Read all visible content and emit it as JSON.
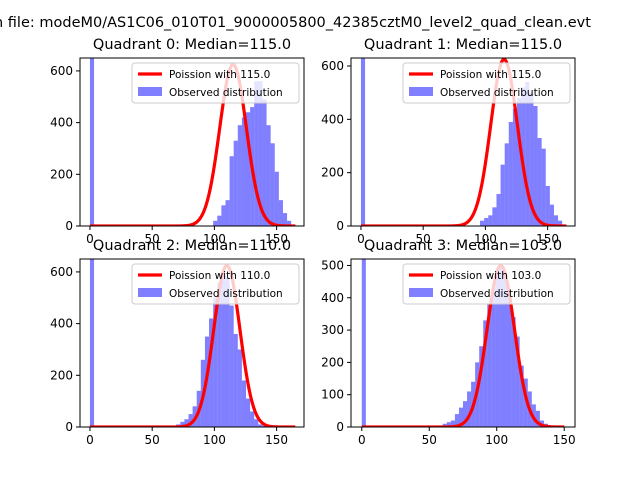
{
  "figure_title": "n file: modeM0/AS1C06_010T01_9000005800_42385cztM0_level2_quad_clean.evt",
  "colors": {
    "histogram": "#0000ff",
    "histogram_alpha": 0.5,
    "poisson_line": "#ff0000"
  },
  "chart_data": [
    {
      "type": "bar",
      "title": "Quadrant 0: Median=115.0",
      "xlim": [
        -8,
        172
      ],
      "ylim": [
        0,
        650
      ],
      "xticks": [
        0,
        50,
        100,
        150
      ],
      "yticks": [
        0,
        200,
        400,
        600
      ],
      "legend": {
        "placement": "upper right",
        "entries": [
          "Poission with 115.0",
          "Observed distribution"
        ]
      },
      "median": 115.0,
      "poisson_mean": 115.0,
      "poisson_peak": 625,
      "poisson_xrange": [
        0,
        165
      ],
      "histogram": {
        "bin_width": 3.3,
        "x_start": 0,
        "values": [
          650,
          0,
          0,
          0,
          0,
          0,
          0,
          0,
          0,
          0,
          0,
          0,
          0,
          0,
          0,
          0,
          0,
          0,
          0,
          0,
          0,
          0,
          0,
          0,
          0,
          0,
          0,
          0,
          0,
          0,
          20,
          40,
          80,
          100,
          270,
          330,
          390,
          420,
          440,
          460,
          560,
          560,
          490,
          390,
          320,
          210,
          100,
          50,
          20,
          5
        ]
      }
    },
    {
      "type": "bar",
      "title": "Quadrant 1: Median=115.0",
      "xlim": [
        -8,
        172
      ],
      "ylim": [
        0,
        630
      ],
      "xticks": [
        0,
        50,
        100,
        150
      ],
      "yticks": [
        0,
        200,
        400,
        600
      ],
      "legend": {
        "placement": "upper right",
        "entries": [
          "Poission with 115.0",
          "Observed distribution"
        ]
      },
      "median": 115.0,
      "poisson_mean": 115.0,
      "poisson_peak": 625,
      "poisson_xrange": [
        0,
        165
      ],
      "histogram": {
        "bin_width": 3.3,
        "x_start": 0,
        "values": [
          630,
          0,
          0,
          0,
          0,
          0,
          0,
          0,
          0,
          0,
          0,
          0,
          0,
          0,
          0,
          0,
          0,
          0,
          0,
          0,
          0,
          0,
          0,
          0,
          0,
          0,
          0,
          0,
          0,
          20,
          30,
          40,
          70,
          120,
          230,
          310,
          390,
          440,
          480,
          520,
          540,
          500,
          450,
          330,
          290,
          150,
          80,
          40,
          20,
          5
        ]
      }
    },
    {
      "type": "bar",
      "title": "Quadrant 2: Median=110.0",
      "xlim": [
        -8,
        172
      ],
      "ylim": [
        0,
        650
      ],
      "xticks": [
        0,
        50,
        100,
        150
      ],
      "yticks": [
        0,
        200,
        400,
        600
      ],
      "legend": {
        "placement": "upper right",
        "entries": [
          "Poission with 110.0",
          "Observed distribution"
        ]
      },
      "median": 110.0,
      "poisson_mean": 110.0,
      "poisson_peak": 625,
      "poisson_xrange": [
        0,
        165
      ],
      "histogram": {
        "bin_width": 3.3,
        "x_start": 0,
        "values": [
          650,
          0,
          0,
          0,
          0,
          0,
          0,
          0,
          0,
          0,
          0,
          0,
          0,
          0,
          0,
          0,
          0,
          0,
          0,
          0,
          0,
          10,
          20,
          30,
          50,
          80,
          140,
          260,
          350,
          420,
          500,
          560,
          590,
          580,
          470,
          360,
          300,
          180,
          110,
          60,
          30,
          10,
          5,
          2,
          0,
          0,
          0,
          0,
          0,
          0
        ]
      }
    },
    {
      "type": "bar",
      "title": "Quadrant 3: Median=103.0",
      "xlim": [
        -8,
        158
      ],
      "ylim": [
        0,
        520
      ],
      "xticks": [
        0,
        50,
        100,
        150
      ],
      "yticks": [
        0,
        100,
        200,
        300,
        400,
        500
      ],
      "legend": {
        "placement": "upper right",
        "entries": [
          "Poission with 103.0",
          "Observed distribution"
        ]
      },
      "median": 103.0,
      "poisson_mean": 103.0,
      "poisson_peak": 500,
      "poisson_xrange": [
        0,
        150
      ],
      "histogram": {
        "bin_width": 3.0,
        "x_start": 0,
        "values": [
          520,
          0,
          0,
          0,
          0,
          0,
          0,
          0,
          0,
          0,
          0,
          0,
          0,
          0,
          0,
          0,
          0,
          0,
          0,
          0,
          10,
          15,
          20,
          40,
          60,
          80,
          110,
          140,
          200,
          250,
          330,
          380,
          430,
          480,
          500,
          470,
          400,
          340,
          280,
          190,
          150,
          110,
          70,
          50,
          20,
          10,
          5,
          2,
          0,
          0
        ]
      }
    }
  ]
}
